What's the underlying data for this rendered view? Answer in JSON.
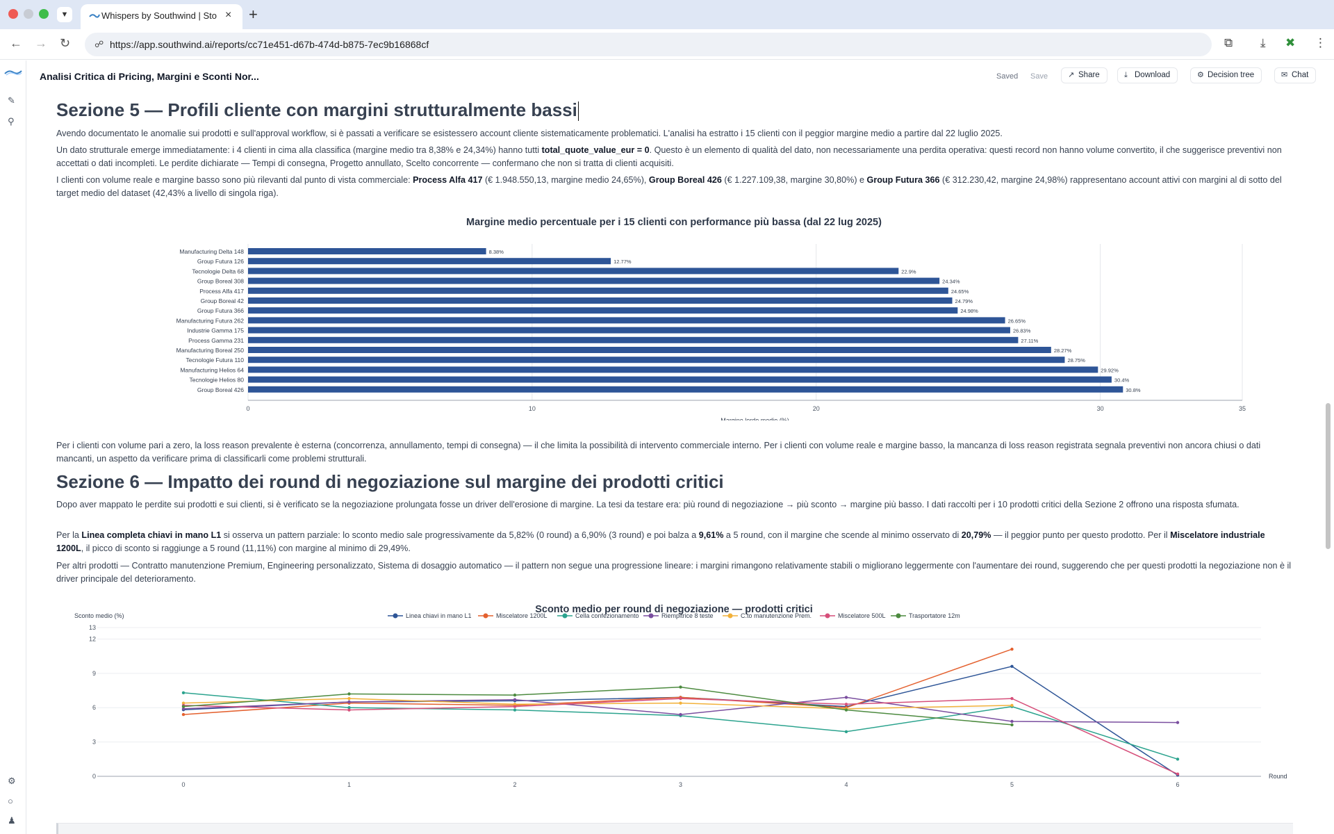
{
  "browser": {
    "tab_title": "Whispers by Southwind | Sto",
    "url": "https://app.southwind.ai/reports/cc71e451-d67b-474d-b875-7ec9b16868cf"
  },
  "header": {
    "doc_title": "Analisi Critica di Pricing, Margini e Sconti Nor...",
    "saved_label": "Saved",
    "save_label": "Save",
    "share_label": "Share",
    "download_label": "Download",
    "decision_tree_label": "Decision tree",
    "chat_label": "Chat"
  },
  "section5": {
    "heading": "Sezione 5 — Profili cliente con margini strutturalmente bassi",
    "p1": "Avendo documentato le anomalie sui prodotti e sull'approval workflow, si è passati a verificare se esistessero account cliente sistematicamente problematici. L'analisi ha estratto i 15 clienti con il peggior margine medio a partire dal 22 luglio 2025.",
    "p2_a": "Un dato strutturale emerge immediatamente: i 4 clienti in cima alla classifica (margine medio tra 8,38% e 24,34%) hanno tutti ",
    "p2_b": "total_quote_value_eur = 0",
    "p2_c": ". Questo è un elemento di qualità del dato, non necessariamente una perdita operativa: questi record non hanno volume convertito, il che suggerisce preventivi non accettati o dati incompleti. Le perdite dichiarate — Tempi di consegna, Progetto annullato, Scelto concorrente — confermano che non si tratta di clienti acquisiti.",
    "p3_a": "I clienti con volume reale e margine basso sono più rilevanti dal punto di vista commerciale: ",
    "p3_b": "Process Alfa 417",
    "p3_c": " (€ 1.948.550,13, margine medio 24,65%), ",
    "p3_d": "Group Boreal 426",
    "p3_e": " (€ 1.227.109,38, margine 30,80%) e ",
    "p3_f": "Group Futura 366",
    "p3_g": " (€ 312.230,42, margine 24,98%) rappresentano account attivi con margini al di sotto del target medio del dataset (42,43% a livello di singola riga).",
    "p4": "Per i clienti con volume pari a zero, la loss reason prevalente è esterna (concorrenza, annullamento, tempi di consegna) — il che limita la possibilità di intervento commerciale interno. Per i clienti con volume reale e margine basso, la mancanza di loss reason registrata segnala preventivi non ancora chiusi o dati mancanti, un aspetto da verificare prima di classificarli come problemi strutturali."
  },
  "section6": {
    "heading": "Sezione 6 — Impatto dei round di negoziazione sul margine dei prodotti critici",
    "p1": "Dopo aver mappato le perdite sui prodotti e sui clienti, si è verificato se la negoziazione prolungata fosse un driver dell'erosione di margine. La tesi da testare era: più round di negoziazione → più sconto → margine più basso. I dati raccolti per i 10 prodotti critici della Sezione 2 offrono una risposta sfumata.",
    "p2_a": "Per la ",
    "p2_b": "Linea completa chiavi in mano L1",
    "p2_c": " si osserva un pattern parziale: lo sconto medio sale progressivamente da 5,82% (0 round) a 6,90% (3 round) e poi balza a ",
    "p2_d": "9,61%",
    "p2_e": " a 5 round, con il margine che scende al minimo osservato di ",
    "p2_f": "20,79%",
    "p2_g": " — il peggior punto per questo prodotto. Per il ",
    "p2_h": "Miscelatore industriale 1200L",
    "p2_i": ", il picco di sconto si raggiunge a 5 round (11,11%) con margine al minimo di 29,49%.",
    "p3": "Per altri prodotti — Contratto manutenzione Premium, Engineering personalizzato, Sistema di dosaggio automatico — il pattern non segue una progressione lineare: i margini rimangono relativamente stabili o migliorano leggermente con l'aumentare dei round, suggerendo che per questi prodotti la negoziazione non è il driver principale del deterioramento."
  },
  "chart_data": [
    {
      "type": "bar",
      "orientation": "horizontal",
      "title": "Margine medio percentuale per i 15 clienti con performance più bassa (dal 22 lug 2025)",
      "xlabel": "Margine lordo medio (%)",
      "ylabel": "",
      "xlim": [
        0,
        35
      ],
      "xticks": [
        0,
        10,
        20,
        30,
        35
      ],
      "grid": true,
      "color": "#2e5597",
      "categories": [
        "Manufacturing Delta 148",
        "Group Futura 126",
        "Tecnologie Delta 68",
        "Group Boreal 308",
        "Process Alfa 417",
        "Group Boreal 42",
        "Group Futura 366",
        "Manufacturing Futura 262",
        "Industrie Gamma 175",
        "Process Gamma 231",
        "Manufacturing Boreal 250",
        "Tecnologie Futura 110",
        "Manufacturing Helios 64",
        "Tecnologie Helios 80",
        "Group Boreal 426"
      ],
      "values": [
        8.38,
        12.77,
        22.9,
        24.34,
        24.65,
        24.79,
        24.98,
        26.65,
        26.83,
        27.11,
        28.27,
        28.75,
        29.92,
        30.4,
        30.8
      ],
      "data_labels": [
        "8.38%",
        "12.77%",
        "22.9%",
        "24.34%",
        "24.65%",
        "24.79%",
        "24.98%",
        "26.65%",
        "26.83%",
        "27.11%",
        "28.27%",
        "28.75%",
        "29.92%",
        "30.4%",
        "30.8%"
      ]
    },
    {
      "type": "line",
      "title": "Sconto medio per round di negoziazione — prodotti critici",
      "ylabel": "Sconto medio (%)",
      "xlabel": "Round",
      "x": [
        0,
        1,
        2,
        3,
        4,
        5,
        6
      ],
      "ylim": [
        0,
        13
      ],
      "yticks": [
        0,
        3,
        6,
        9,
        12,
        13
      ],
      "grid": true,
      "legend_position": "top",
      "series": [
        {
          "name": "Linea chiavi in mano L1",
          "color": "#2e5597",
          "x": [
            0,
            1,
            2,
            3,
            4,
            5,
            6
          ],
          "values": [
            5.82,
            6.5,
            6.6,
            6.9,
            6.1,
            9.61,
            0.1
          ]
        },
        {
          "name": "Miscelatore 1200L",
          "color": "#e4612f",
          "x": [
            0,
            1,
            2,
            3,
            4,
            5
          ],
          "values": [
            5.4,
            6.4,
            6.2,
            6.9,
            6.0,
            11.11
          ]
        },
        {
          "name": "Cella confezionamento",
          "color": "#2ba38e",
          "x": [
            0,
            1,
            2,
            3,
            4,
            5,
            6
          ],
          "values": [
            7.3,
            6.0,
            5.8,
            5.3,
            3.9,
            6.1,
            1.5
          ]
        },
        {
          "name": "Riempitrice 8 teste",
          "color": "#7a4e9f",
          "x": [
            0,
            1,
            2,
            3,
            4,
            5,
            6
          ],
          "values": [
            5.9,
            6.5,
            6.7,
            5.4,
            6.9,
            4.8,
            4.7
          ]
        },
        {
          "name": "C.to manutenzione Prem.",
          "color": "#f2b13a",
          "x": [
            0,
            1,
            2,
            3,
            4,
            5
          ],
          "values": [
            6.4,
            6.8,
            6.3,
            6.4,
            5.9,
            6.2
          ]
        },
        {
          "name": "Miscelatore 500L",
          "color": "#d64f7a",
          "x": [
            0,
            1,
            2,
            3,
            4,
            5,
            6
          ],
          "values": [
            6.2,
            5.8,
            6.1,
            6.8,
            6.3,
            6.8,
            0.2
          ]
        },
        {
          "name": "Trasportatore 12m",
          "color": "#4c8a3f",
          "x": [
            0,
            1,
            2,
            3,
            4,
            5
          ],
          "values": [
            6.1,
            7.2,
            7.1,
            7.8,
            5.8,
            4.5
          ]
        }
      ]
    }
  ]
}
